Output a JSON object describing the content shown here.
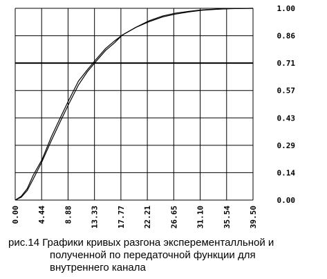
{
  "chart_data": {
    "type": "line",
    "title": "",
    "xlabel": "",
    "ylabel": "",
    "xlim": [
      0,
      39.5
    ],
    "ylim": [
      0,
      1.0
    ],
    "x_ticks": [
      "0.00",
      "4.44",
      "8.88",
      "13.33",
      "17.77",
      "22.21",
      "26.65",
      "31.10",
      "35.54",
      "39.50"
    ],
    "y_ticks": [
      "1.00",
      "0.86",
      "0.71",
      "0.57",
      "0.43",
      "0.29",
      "0.14",
      "0.00"
    ],
    "grid": true,
    "reference_line": {
      "y": 0.71
    },
    "series": [
      {
        "x": [
          0,
          1,
          2,
          3,
          4.44,
          6,
          7.5,
          8.88,
          10.5,
          12,
          13.33,
          15,
          16.5,
          17.77,
          20,
          22.21,
          24.5,
          26.65,
          29,
          31.1,
          33.5,
          35.54,
          37.5,
          39.5
        ],
        "values": [
          0,
          0.02,
          0.06,
          0.13,
          0.21,
          0.33,
          0.43,
          0.52,
          0.62,
          0.68,
          0.73,
          0.79,
          0.83,
          0.86,
          0.9,
          0.93,
          0.955,
          0.97,
          0.982,
          0.99,
          0.995,
          0.998,
          0.999,
          1.0
        ]
      },
      {
        "x": [
          0,
          1,
          2,
          3,
          4.44,
          6,
          7.5,
          8.88,
          10.5,
          12,
          13.33,
          15,
          16.5,
          17.77,
          20,
          22.21,
          24.5,
          26.65,
          29,
          31.1,
          33.5,
          35.54,
          37.5,
          39.5
        ],
        "values": [
          0,
          0.015,
          0.05,
          0.11,
          0.2,
          0.31,
          0.41,
          0.5,
          0.6,
          0.67,
          0.72,
          0.78,
          0.82,
          0.86,
          0.9,
          0.935,
          0.96,
          0.975,
          0.985,
          0.992,
          0.996,
          0.998,
          0.999,
          1.0
        ]
      }
    ]
  },
  "caption": {
    "line1": "рис.14  Графики кривых разгона эксперементалльной и",
    "line2": "полученной по передаточной функции для",
    "line3": "внутреннего канала"
  }
}
